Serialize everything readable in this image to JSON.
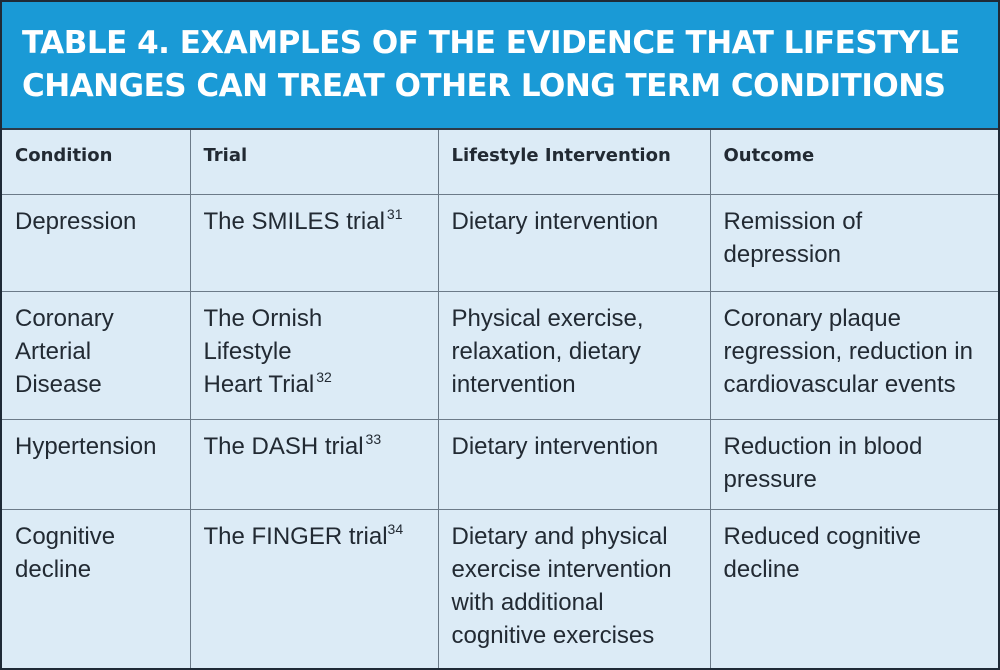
{
  "title": {
    "line1": "TABLE 4. EXAMPLES OF THE EVIDENCE THAT LIFESTYLE",
    "line2": "CHANGES CAN TREAT OTHER LONG TERM CONDITIONS"
  },
  "headers": {
    "condition": "Condition",
    "trial": "Trial",
    "intervention": "Lifestyle Intervention",
    "outcome": "Outcome"
  },
  "rows": [
    {
      "condition": [
        "Depression"
      ],
      "trial": [
        "The SMILES trial"
      ],
      "ref": "31",
      "intervention": [
        "Dietary intervention"
      ],
      "outcome": [
        "Remission of",
        "depression"
      ]
    },
    {
      "condition": [
        "Coronary",
        "Arterial",
        "Disease"
      ],
      "trial": [
        "The Ornish",
        "Lifestyle",
        "Heart Trial"
      ],
      "ref": "32",
      "intervention": [
        "Physical exercise,",
        "relaxation, dietary",
        "intervention"
      ],
      "outcome": [
        "Coronary plaque",
        "regression, reduction in",
        "cardiovascular events"
      ]
    },
    {
      "condition": [
        "Hypertension"
      ],
      "trial": [
        "The DASH trial"
      ],
      "ref": "33",
      "intervention": [
        "Dietary intervention"
      ],
      "outcome": [
        "Reduction in blood",
        "pressure"
      ]
    },
    {
      "condition": [
        "Cognitive",
        "decline"
      ],
      "trial": [
        "The FINGER trial"
      ],
      "ref": "34",
      "intervention": [
        "Dietary and physical",
        "exercise intervention",
        "with additional",
        "cognitive exercises"
      ],
      "outcome": [
        "Reduced cognitive",
        "decline"
      ]
    }
  ]
}
